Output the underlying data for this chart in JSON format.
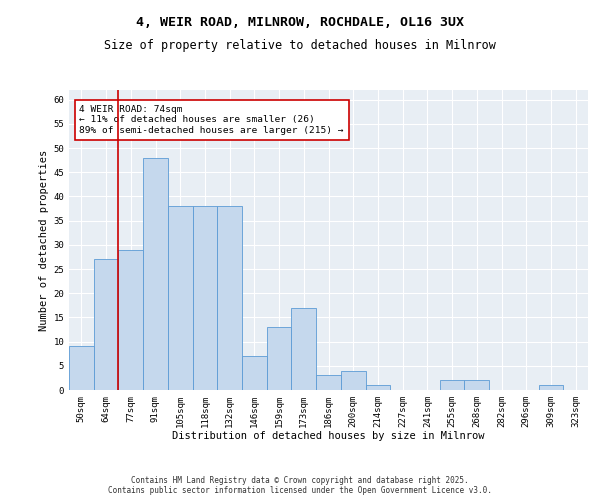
{
  "title_line1": "4, WEIR ROAD, MILNROW, ROCHDALE, OL16 3UX",
  "title_line2": "Size of property relative to detached houses in Milnrow",
  "xlabel": "Distribution of detached houses by size in Milnrow",
  "ylabel": "Number of detached properties",
  "categories": [
    "50sqm",
    "64sqm",
    "77sqm",
    "91sqm",
    "105sqm",
    "118sqm",
    "132sqm",
    "146sqm",
    "159sqm",
    "173sqm",
    "186sqm",
    "200sqm",
    "214sqm",
    "227sqm",
    "241sqm",
    "255sqm",
    "268sqm",
    "282sqm",
    "296sqm",
    "309sqm",
    "323sqm"
  ],
  "values": [
    9,
    27,
    29,
    48,
    38,
    38,
    38,
    7,
    13,
    17,
    3,
    4,
    1,
    0,
    0,
    2,
    2,
    0,
    0,
    1,
    0
  ],
  "bar_color": "#c5d8ed",
  "bar_edge_color": "#5b9bd5",
  "vline_color": "#cc0000",
  "annotation_text": "4 WEIR ROAD: 74sqm\n← 11% of detached houses are smaller (26)\n89% of semi-detached houses are larger (215) →",
  "annotation_box_color": "white",
  "annotation_box_edge_color": "#cc0000",
  "ylim": [
    0,
    62
  ],
  "yticks": [
    0,
    5,
    10,
    15,
    20,
    25,
    30,
    35,
    40,
    45,
    50,
    55,
    60
  ],
  "background_color": "#e8eef4",
  "grid_color": "white",
  "footer": "Contains HM Land Registry data © Crown copyright and database right 2025.\nContains public sector information licensed under the Open Government Licence v3.0.",
  "title_fontsize": 9.5,
  "subtitle_fontsize": 8.5,
  "tick_fontsize": 6.5,
  "label_fontsize": 7.5,
  "annotation_fontsize": 6.8,
  "footer_fontsize": 5.5
}
